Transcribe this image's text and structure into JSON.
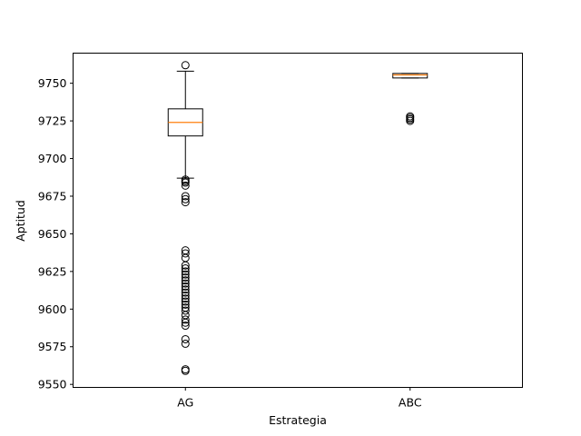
{
  "chart_data": {
    "type": "boxplot",
    "title": "",
    "xlabel": "Estrategia",
    "ylabel": "Aptitud",
    "categories": [
      "AG",
      "ABC"
    ],
    "ylim": [
      9548,
      9770
    ],
    "yticks": [
      9550,
      9575,
      9600,
      9625,
      9650,
      9675,
      9700,
      9725,
      9750
    ],
    "grid": false,
    "median_color": "#ff7f0e",
    "box_color": "#000000",
    "boxes": [
      {
        "category": "AG",
        "whisker_low": 9687,
        "q1": 9715,
        "median": 9724,
        "q3": 9733,
        "whisker_high": 9758,
        "outliers": [
          9762,
          9686,
          9685,
          9684,
          9682,
          9675,
          9673,
          9671,
          9639,
          9637,
          9634,
          9629,
          9627,
          9625,
          9623,
          9621,
          9619,
          9617,
          9615,
          9613,
          9611,
          9609,
          9607,
          9605,
          9603,
          9601,
          9599,
          9596,
          9593,
          9591,
          9589,
          9580,
          9577,
          9560,
          9559
        ]
      },
      {
        "category": "ABC",
        "whisker_low": 9753.5,
        "q1": 9753.5,
        "median": 9755.5,
        "q3": 9756.5,
        "whisker_high": 9756.5,
        "outliers": [
          9728,
          9727,
          9726,
          9725
        ]
      }
    ]
  }
}
